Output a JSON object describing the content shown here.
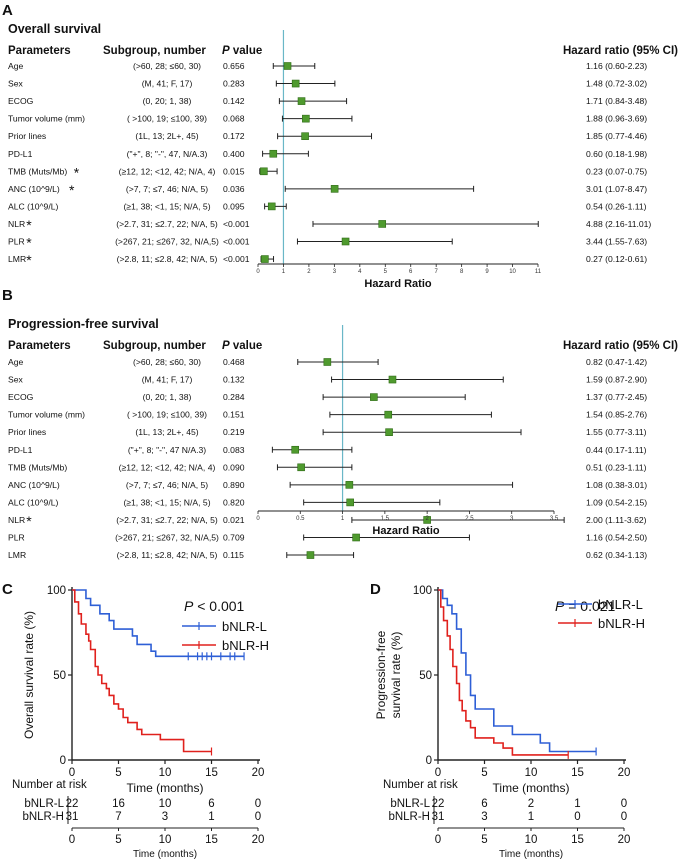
{
  "panels": {
    "a": "A",
    "b": "B",
    "c": "C",
    "d": "D"
  },
  "forest_headers": {
    "parameters": "Parameters",
    "subgroup": "Subgroup, number",
    "p_italic": "P",
    "p_rest": " value",
    "hr": "Hazard ratio (95% CI)",
    "axis_title": "Hazard Ratio"
  },
  "km_headers": {
    "x_label": "Time (months)",
    "risk_title": "Number at risk",
    "p_italic": "P"
  },
  "colors": {
    "square": "#4f9a2e",
    "square_edge": "#2f6b16",
    "refline": "#6ab7c7",
    "asterisk": "#e0211d",
    "low": "#2e5fd6",
    "high": "#e0211d"
  },
  "chart_data": [
    {
      "type": "forest",
      "panel": "A",
      "title": "Overall survival",
      "x_axis": {
        "label": "Hazard Ratio",
        "lim": [
          0,
          11
        ],
        "ticks": [
          "0",
          "1",
          "2",
          "3",
          "4",
          "5",
          "6",
          "7",
          "8",
          "9",
          "10",
          "11"
        ],
        "reference": 1
      },
      "rows": [
        {
          "param": "Age",
          "sig": false,
          "subgroup": "(>60, 28; ≤60, 30)",
          "p": "0.656",
          "hr_text": "1.16 (0.60-2.23)",
          "hr": 1.16,
          "lo": 0.6,
          "hi": 2.23
        },
        {
          "param": "Sex",
          "sig": false,
          "subgroup": "(M, 41; F, 17)",
          "p": "0.283",
          "hr_text": "1.48 (0.72-3.02)",
          "hr": 1.48,
          "lo": 0.72,
          "hi": 3.02
        },
        {
          "param": "ECOG",
          "sig": false,
          "subgroup": "(0, 20; 1, 38)",
          "p": "0.142",
          "hr_text": "1.71 (0.84-3.48)",
          "hr": 1.71,
          "lo": 0.84,
          "hi": 3.48
        },
        {
          "param": "Tumor volume (mm)",
          "sig": false,
          "subgroup": "( >100, 19; ≤100, 39)",
          "p": "0.068",
          "hr_text": "1.88 (0.96-3.69)",
          "hr": 1.88,
          "lo": 0.96,
          "hi": 3.69
        },
        {
          "param": "Prior lines",
          "sig": false,
          "subgroup": "(1L, 13; 2L+, 45)",
          "p": "0.172",
          "hr_text": "1.85 (0.77-4.46)",
          "hr": 1.85,
          "lo": 0.77,
          "hi": 4.46
        },
        {
          "param": "PD-L1",
          "sig": false,
          "subgroup": "(\"+\", 8; \"-\", 47, N/A.3)",
          "p": "0.400",
          "hr_text": "0.60 (0.18-1.98)",
          "hr": 0.6,
          "lo": 0.18,
          "hi": 1.98
        },
        {
          "param": "TMB (Muts/Mb)",
          "sig": true,
          "subgroup": "(≥12, 12;  <12, 42; N/A, 4)",
          "p": "0.015",
          "hr_text": "0.23 (0.07-0.75)",
          "hr": 0.23,
          "lo": 0.07,
          "hi": 0.75
        },
        {
          "param": "ANC (10^9/L)",
          "sig": true,
          "subgroup": "(>7, 7;  ≤7, 46; N/A, 5)",
          "p": "0.036",
          "hr_text": "3.01 (1.07-8.47)",
          "hr": 3.01,
          "lo": 1.07,
          "hi": 8.47
        },
        {
          "param": "ALC (10^9/L)",
          "sig": false,
          "subgroup": "(≥1, 38;  <1, 15; N/A, 5)",
          "p": "0.095",
          "hr_text": "0.54 (0.26-1.11)",
          "hr": 0.54,
          "lo": 0.26,
          "hi": 1.11
        },
        {
          "param": "NLR",
          "sig": true,
          "subgroup": "(>2.7, 31; ≤2.7, 22; N/A, 5)",
          "p": "<0.001",
          "hr_text": "4.88 (2.16-11.01)",
          "hr": 4.88,
          "lo": 2.16,
          "hi": 11.01
        },
        {
          "param": "PLR",
          "sig": true,
          "subgroup": "(>267, 21; ≤267, 32, N/A,5)",
          "p": "<0.001",
          "hr_text": "3.44 (1.55-7.63)",
          "hr": 3.44,
          "lo": 1.55,
          "hi": 7.63
        },
        {
          "param": "LMR",
          "sig": true,
          "subgroup": "(>2.8, 11; ≤2.8, 42; N/A, 5)",
          "p": "<0.001",
          "hr_text": "0.27 (0.12-0.61)",
          "hr": 0.27,
          "lo": 0.12,
          "hi": 0.61
        }
      ]
    },
    {
      "type": "forest",
      "panel": "B",
      "title": "Progression-free survival",
      "x_axis": {
        "label": "Hazard Ratio",
        "lim": [
          0,
          3.5
        ],
        "ticks": [
          "0",
          "0.5",
          "1",
          "1.5",
          "2",
          "2.5",
          "3",
          "3.5"
        ],
        "reference": 1
      },
      "rows": [
        {
          "param": "Age",
          "sig": false,
          "subgroup": "(>60, 28; ≤60, 30)",
          "p": "0.468",
          "hr_text": "0.82 (0.47-1.42)",
          "hr": 0.82,
          "lo": 0.47,
          "hi": 1.42
        },
        {
          "param": "Sex",
          "sig": false,
          "subgroup": "(M, 41; F, 17)",
          "p": "0.132",
          "hr_text": "1.59 (0.87-2.90)",
          "hr": 1.59,
          "lo": 0.87,
          "hi": 2.9
        },
        {
          "param": "ECOG",
          "sig": false,
          "subgroup": "(0, 20; 1, 38)",
          "p": "0.284",
          "hr_text": "1.37 (0.77-2.45)",
          "hr": 1.37,
          "lo": 0.77,
          "hi": 2.45
        },
        {
          "param": "Tumor volume (mm)",
          "sig": false,
          "subgroup": "( >100, 19; ≤100, 39)",
          "p": "0.151",
          "hr_text": "1.54 (0.85-2.76)",
          "hr": 1.54,
          "lo": 0.85,
          "hi": 2.76
        },
        {
          "param": "Prior lines",
          "sig": false,
          "subgroup": "(1L, 13; 2L+, 45)",
          "p": "0.219",
          "hr_text": "1.55 (0.77-3.11)",
          "hr": 1.55,
          "lo": 0.77,
          "hi": 3.11
        },
        {
          "param": "PD-L1",
          "sig": false,
          "subgroup": "(\"+\", 8; \"-\", 47 N/A.3)",
          "p": "0.083",
          "hr_text": "0.44 (0.17-1.11)",
          "hr": 0.44,
          "lo": 0.17,
          "hi": 1.11
        },
        {
          "param": "TMB (Muts/Mb)",
          "sig": false,
          "subgroup": "(≥12, 12;  <12, 42; N/A, 4)",
          "p": "0.090",
          "hr_text": "0.51 (0.23-1.11)",
          "hr": 0.51,
          "lo": 0.23,
          "hi": 1.11
        },
        {
          "param": "ANC (10^9/L)",
          "sig": false,
          "subgroup": "(>7, 7;  ≤7, 46; N/A, 5)",
          "p": "0.890",
          "hr_text": "1.08 (0.38-3.01)",
          "hr": 1.08,
          "lo": 0.38,
          "hi": 3.01
        },
        {
          "param": "ALC (10^9/L)",
          "sig": false,
          "subgroup": "(≥1, 38;  <1, 15; N/A, 5)",
          "p": "0.820",
          "hr_text": "1.09 (0.54-2.15)",
          "hr": 1.09,
          "lo": 0.54,
          "hi": 2.15
        },
        {
          "param": "NLR",
          "sig": true,
          "subgroup": "(>2.7, 31; ≤2.7, 22; N/A, 5)",
          "p": "0.021",
          "hr_text": "2.00 (1.11-3.62)",
          "hr": 2.0,
          "lo": 1.11,
          "hi": 3.62
        },
        {
          "param": "PLR",
          "sig": false,
          "subgroup": "(>267, 21; ≤267, 32, N/A,5)",
          "p": "0.709",
          "hr_text": "1.16 (0.54-2.50)",
          "hr": 1.16,
          "lo": 0.54,
          "hi": 2.5
        },
        {
          "param": "LMR",
          "sig": false,
          "subgroup": "(>2.8, 11; ≤2.8, 42; N/A, 5)",
          "p": "0.115",
          "hr_text": "0.62 (0.34-1.13)",
          "hr": 0.62,
          "lo": 0.34,
          "hi": 1.13
        }
      ]
    },
    {
      "type": "line",
      "subtype": "kaplan-meier",
      "panel": "C",
      "ylabel": "Overall survival rate (%)",
      "xlabel": "Time (months)",
      "xlim": [
        0,
        20
      ],
      "ylim": [
        0,
        100
      ],
      "x_ticks": [
        "0",
        "5",
        "10",
        "15",
        "20"
      ],
      "y_ticks": [
        "0",
        "50",
        "100"
      ],
      "p_value": " < 0.001",
      "legend_position": "top-right",
      "series": [
        {
          "name": "bNLR-L",
          "color_key": "low",
          "steps": [
            [
              0,
              100
            ],
            [
              1.5,
              95
            ],
            [
              2,
              91
            ],
            [
              3,
              86
            ],
            [
              4,
              82
            ],
            [
              4.5,
              77
            ],
            [
              6.5,
              73
            ],
            [
              7,
              68
            ],
            [
              8.5,
              64
            ],
            [
              9,
              61
            ],
            [
              18.5,
              61
            ]
          ],
          "censor_x": [
            12.5,
            13.5,
            14,
            14.5,
            15,
            16,
            17,
            17.5,
            18.5
          ]
        },
        {
          "name": "bNLR-H",
          "color_key": "high",
          "steps": [
            [
              0,
              100
            ],
            [
              0.3,
              93
            ],
            [
              0.7,
              86
            ],
            [
              1,
              80
            ],
            [
              1.5,
              74
            ],
            [
              1.8,
              70
            ],
            [
              2,
              65
            ],
            [
              2.5,
              55
            ],
            [
              2.8,
              50
            ],
            [
              3.2,
              45
            ],
            [
              3.7,
              42
            ],
            [
              4,
              38
            ],
            [
              4.5,
              33
            ],
            [
              5,
              30
            ],
            [
              5.5,
              25
            ],
            [
              6,
              22
            ],
            [
              7,
              18
            ],
            [
              7.5,
              15
            ],
            [
              9.5,
              12
            ],
            [
              12,
              5
            ],
            [
              15,
              5
            ]
          ],
          "censor_x": [
            15
          ]
        }
      ],
      "at_risk": {
        "x": [
          "0",
          "5",
          "10",
          "15",
          "20"
        ],
        "rows": [
          {
            "label": "bNLR-L",
            "color_key": "low",
            "values": [
              "22",
              "16",
              "10",
              "6",
              "0"
            ]
          },
          {
            "label": "bNLR-H",
            "color_key": "high",
            "values": [
              "31",
              "7",
              "3",
              "1",
              "0"
            ]
          }
        ]
      }
    },
    {
      "type": "line",
      "subtype": "kaplan-meier",
      "panel": "D",
      "ylabel_lines": [
        "Progression-free",
        "survival rate (%)"
      ],
      "xlabel": "Time (months)",
      "xlim": [
        0,
        20
      ],
      "ylim": [
        0,
        100
      ],
      "x_ticks": [
        "0",
        "5",
        "10",
        "15",
        "20"
      ],
      "y_ticks": [
        "0",
        "50",
        "100"
      ],
      "p_value": " = 0.021",
      "legend_position": "top-right",
      "series": [
        {
          "name": "bNLR-L",
          "color_key": "low",
          "steps": [
            [
              0,
              100
            ],
            [
              0.5,
              95
            ],
            [
              1,
              91
            ],
            [
              1.5,
              86
            ],
            [
              2,
              77
            ],
            [
              2.5,
              63
            ],
            [
              3,
              50
            ],
            [
              3.5,
              38
            ],
            [
              4,
              30
            ],
            [
              6,
              20
            ],
            [
              8,
              15
            ],
            [
              11,
              10
            ],
            [
              12,
              5
            ],
            [
              17,
              5
            ]
          ],
          "censor_x": [
            17
          ]
        },
        {
          "name": "bNLR-H",
          "color_key": "high",
          "steps": [
            [
              0,
              100
            ],
            [
              0.3,
              90
            ],
            [
              0.6,
              82
            ],
            [
              1,
              73
            ],
            [
              1.3,
              65
            ],
            [
              1.6,
              55
            ],
            [
              2,
              45
            ],
            [
              2.3,
              35
            ],
            [
              2.6,
              29
            ],
            [
              3,
              23
            ],
            [
              3.5,
              19
            ],
            [
              4,
              13
            ],
            [
              6,
              10
            ],
            [
              7,
              7
            ],
            [
              8,
              3
            ],
            [
              14,
              3
            ]
          ],
          "censor_x": [
            14
          ]
        }
      ],
      "at_risk": {
        "x": [
          "0",
          "5",
          "10",
          "15",
          "20"
        ],
        "rows": [
          {
            "label": "bNLR-L",
            "color_key": "low",
            "values": [
              "22",
              "6",
              "2",
              "1",
              "0"
            ]
          },
          {
            "label": "bNLR-H",
            "color_key": "high",
            "values": [
              "31",
              "3",
              "1",
              "0",
              "0"
            ]
          }
        ]
      }
    }
  ]
}
